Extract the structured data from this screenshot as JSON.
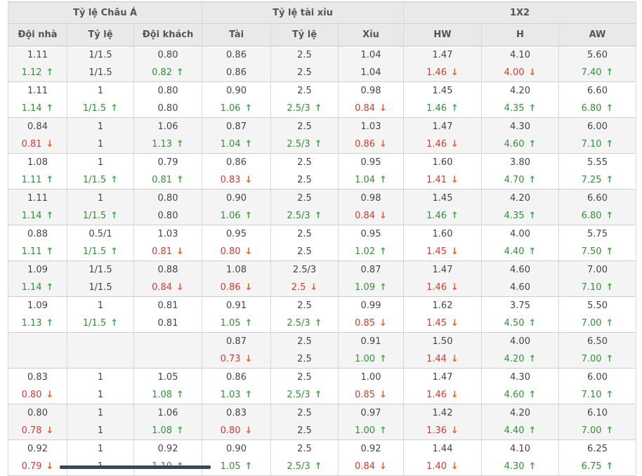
{
  "icons": {
    "up_arrow": "↑",
    "down_arrow": "↓"
  },
  "colors": {
    "trend_up_text": "#2e9230",
    "trend_down_text": "#d63a2a",
    "trend_up_arrow": "#3fae3f",
    "trend_down_arrow": "#f25a1e",
    "header_bg": "#e9e9e9",
    "shaded_row_bg": "#f4f4f4",
    "scrollbar_thumb": "#36495e"
  },
  "table": {
    "sections": [
      {
        "title": "Tỷ lệ Châu Á",
        "columns": [
          "Đội nhà",
          "Tỷ lệ",
          "Đội khách"
        ]
      },
      {
        "title": "Tỷ lệ tài xỉu",
        "columns": [
          "Tài",
          "Tỷ lệ",
          "Xỉu"
        ]
      },
      {
        "title": "1X2",
        "columns": [
          "HW",
          "H",
          "AW"
        ]
      }
    ],
    "rows": [
      {
        "shaded": true,
        "lines": [
          [
            [
              "1.11",
              ""
            ],
            [
              "1/1.5",
              ""
            ],
            [
              "0.80",
              ""
            ],
            [
              "0.86",
              ""
            ],
            [
              "2.5",
              ""
            ],
            [
              "1.04",
              ""
            ],
            [
              "1.47",
              ""
            ],
            [
              "4.10",
              ""
            ],
            [
              "5.60",
              ""
            ]
          ],
          [
            [
              "1.12",
              "up"
            ],
            [
              "1/1.5",
              ""
            ],
            [
              "0.82",
              "up"
            ],
            [
              "0.86",
              ""
            ],
            [
              "2.5",
              ""
            ],
            [
              "1.04",
              ""
            ],
            [
              "1.46",
              "down"
            ],
            [
              "4.00",
              "down"
            ],
            [
              "7.40",
              "up"
            ]
          ]
        ]
      },
      {
        "shaded": false,
        "lines": [
          [
            [
              "1.11",
              ""
            ],
            [
              "1",
              ""
            ],
            [
              "0.80",
              ""
            ],
            [
              "0.90",
              ""
            ],
            [
              "2.5",
              ""
            ],
            [
              "0.98",
              ""
            ],
            [
              "1.45",
              ""
            ],
            [
              "4.20",
              ""
            ],
            [
              "6.60",
              ""
            ]
          ],
          [
            [
              "1.14",
              "up"
            ],
            [
              "1/1.5",
              "up"
            ],
            [
              "0.80",
              ""
            ],
            [
              "1.06",
              "up"
            ],
            [
              "2.5/3",
              "up"
            ],
            [
              "0.84",
              "down"
            ],
            [
              "1.46",
              "up"
            ],
            [
              "4.35",
              "up"
            ],
            [
              "6.80",
              "up"
            ]
          ]
        ]
      },
      {
        "shaded": true,
        "lines": [
          [
            [
              "0.84",
              ""
            ],
            [
              "1",
              ""
            ],
            [
              "1.06",
              ""
            ],
            [
              "0.87",
              ""
            ],
            [
              "2.5",
              ""
            ],
            [
              "1.03",
              ""
            ],
            [
              "1.47",
              ""
            ],
            [
              "4.30",
              ""
            ],
            [
              "6.00",
              ""
            ]
          ],
          [
            [
              "0.81",
              "down"
            ],
            [
              "1",
              ""
            ],
            [
              "1.13",
              "up"
            ],
            [
              "1.04",
              "up"
            ],
            [
              "2.5/3",
              "up"
            ],
            [
              "0.86",
              "down"
            ],
            [
              "1.46",
              "down"
            ],
            [
              "4.60",
              "up"
            ],
            [
              "7.10",
              "up"
            ]
          ]
        ]
      },
      {
        "shaded": false,
        "lines": [
          [
            [
              "1.08",
              ""
            ],
            [
              "1",
              ""
            ],
            [
              "0.79",
              ""
            ],
            [
              "0.86",
              ""
            ],
            [
              "2.5",
              ""
            ],
            [
              "0.95",
              ""
            ],
            [
              "1.60",
              ""
            ],
            [
              "3.80",
              ""
            ],
            [
              "5.55",
              ""
            ]
          ],
          [
            [
              "1.11",
              "up"
            ],
            [
              "1/1.5",
              "up"
            ],
            [
              "0.81",
              "up"
            ],
            [
              "0.83",
              "down"
            ],
            [
              "2.5",
              ""
            ],
            [
              "1.04",
              "up"
            ],
            [
              "1.41",
              "down"
            ],
            [
              "4.70",
              "up"
            ],
            [
              "7.25",
              "up"
            ]
          ]
        ]
      },
      {
        "shaded": true,
        "lines": [
          [
            [
              "1.11",
              ""
            ],
            [
              "1",
              ""
            ],
            [
              "0.80",
              ""
            ],
            [
              "0.90",
              ""
            ],
            [
              "2.5",
              ""
            ],
            [
              "0.98",
              ""
            ],
            [
              "1.45",
              ""
            ],
            [
              "4.20",
              ""
            ],
            [
              "6.60",
              ""
            ]
          ],
          [
            [
              "1.14",
              "up"
            ],
            [
              "1/1.5",
              "up"
            ],
            [
              "0.80",
              ""
            ],
            [
              "1.06",
              "up"
            ],
            [
              "2.5/3",
              "up"
            ],
            [
              "0.84",
              "down"
            ],
            [
              "1.46",
              "up"
            ],
            [
              "4.35",
              "up"
            ],
            [
              "6.80",
              "up"
            ]
          ]
        ]
      },
      {
        "shaded": false,
        "lines": [
          [
            [
              "0.88",
              ""
            ],
            [
              "0.5/1",
              ""
            ],
            [
              "1.03",
              ""
            ],
            [
              "0.95",
              ""
            ],
            [
              "2.5",
              ""
            ],
            [
              "0.95",
              ""
            ],
            [
              "1.60",
              ""
            ],
            [
              "4.00",
              ""
            ],
            [
              "5.75",
              ""
            ]
          ],
          [
            [
              "1.11",
              "up"
            ],
            [
              "1/1.5",
              "up"
            ],
            [
              "0.81",
              "down"
            ],
            [
              "0.80",
              "down"
            ],
            [
              "2.5",
              ""
            ],
            [
              "1.02",
              "up"
            ],
            [
              "1.45",
              "down"
            ],
            [
              "4.40",
              "up"
            ],
            [
              "7.50",
              "up"
            ]
          ]
        ]
      },
      {
        "shaded": true,
        "lines": [
          [
            [
              "1.09",
              ""
            ],
            [
              "1/1.5",
              ""
            ],
            [
              "0.88",
              ""
            ],
            [
              "1.08",
              ""
            ],
            [
              "2.5/3",
              ""
            ],
            [
              "0.87",
              ""
            ],
            [
              "1.47",
              ""
            ],
            [
              "4.60",
              ""
            ],
            [
              "7.00",
              ""
            ]
          ],
          [
            [
              "1.14",
              "up"
            ],
            [
              "1/1.5",
              ""
            ],
            [
              "0.84",
              "down"
            ],
            [
              "0.86",
              "down"
            ],
            [
              "2.5",
              "down"
            ],
            [
              "1.09",
              "up"
            ],
            [
              "1.46",
              "down"
            ],
            [
              "4.60",
              ""
            ],
            [
              "7.10",
              "up"
            ]
          ]
        ]
      },
      {
        "shaded": false,
        "lines": [
          [
            [
              "1.09",
              ""
            ],
            [
              "1",
              ""
            ],
            [
              "0.81",
              ""
            ],
            [
              "0.91",
              ""
            ],
            [
              "2.5",
              ""
            ],
            [
              "0.99",
              ""
            ],
            [
              "1.62",
              ""
            ],
            [
              "3.75",
              ""
            ],
            [
              "5.50",
              ""
            ]
          ],
          [
            [
              "1.13",
              "up"
            ],
            [
              "1/1.5",
              "up"
            ],
            [
              "0.81",
              ""
            ],
            [
              "1.05",
              "up"
            ],
            [
              "2.5/3",
              "up"
            ],
            [
              "0.85",
              "down"
            ],
            [
              "1.45",
              "down"
            ],
            [
              "4.50",
              "up"
            ],
            [
              "7.00",
              "up"
            ]
          ]
        ]
      },
      {
        "shaded": true,
        "lines": [
          [
            [
              "",
              ""
            ],
            [
              "",
              ""
            ],
            [
              "",
              ""
            ],
            [
              "0.87",
              ""
            ],
            [
              "2.5",
              ""
            ],
            [
              "0.91",
              ""
            ],
            [
              "1.50",
              ""
            ],
            [
              "4.00",
              ""
            ],
            [
              "6.50",
              ""
            ]
          ],
          [
            [
              "",
              ""
            ],
            [
              "",
              ""
            ],
            [
              "",
              ""
            ],
            [
              "0.73",
              "down"
            ],
            [
              "2.5",
              ""
            ],
            [
              "1.00",
              "up"
            ],
            [
              "1.44",
              "down"
            ],
            [
              "4.20",
              "up"
            ],
            [
              "7.00",
              "up"
            ]
          ]
        ]
      },
      {
        "shaded": false,
        "lines": [
          [
            [
              "0.83",
              ""
            ],
            [
              "1",
              ""
            ],
            [
              "1.05",
              ""
            ],
            [
              "0.86",
              ""
            ],
            [
              "2.5",
              ""
            ],
            [
              "1.00",
              ""
            ],
            [
              "1.47",
              ""
            ],
            [
              "4.30",
              ""
            ],
            [
              "6.00",
              ""
            ]
          ],
          [
            [
              "0.80",
              "down"
            ],
            [
              "1",
              ""
            ],
            [
              "1.08",
              "up"
            ],
            [
              "1.03",
              "up"
            ],
            [
              "2.5/3",
              "up"
            ],
            [
              "0.85",
              "down"
            ],
            [
              "1.46",
              "down"
            ],
            [
              "4.60",
              "up"
            ],
            [
              "7.10",
              "up"
            ]
          ]
        ]
      },
      {
        "shaded": true,
        "lines": [
          [
            [
              "0.80",
              ""
            ],
            [
              "1",
              ""
            ],
            [
              "1.06",
              ""
            ],
            [
              "0.83",
              ""
            ],
            [
              "2.5",
              ""
            ],
            [
              "0.97",
              ""
            ],
            [
              "1.42",
              ""
            ],
            [
              "4.20",
              ""
            ],
            [
              "6.10",
              ""
            ]
          ],
          [
            [
              "0.78",
              "down"
            ],
            [
              "1",
              ""
            ],
            [
              "1.08",
              "up"
            ],
            [
              "0.80",
              "down"
            ],
            [
              "2.5",
              ""
            ],
            [
              "1.00",
              "up"
            ],
            [
              "1.36",
              "down"
            ],
            [
              "4.40",
              "up"
            ],
            [
              "7.00",
              "up"
            ]
          ]
        ]
      },
      {
        "shaded": false,
        "lines": [
          [
            [
              "0.92",
              ""
            ],
            [
              "1",
              ""
            ],
            [
              "0.92",
              ""
            ],
            [
              "0.90",
              ""
            ],
            [
              "2.5",
              ""
            ],
            [
              "0.92",
              ""
            ],
            [
              "1.44",
              ""
            ],
            [
              "4.10",
              ""
            ],
            [
              "6.25",
              ""
            ]
          ],
          [
            [
              "0.79",
              "down"
            ],
            [
              "1",
              ""
            ],
            [
              "1.10",
              "up"
            ],
            [
              "1.05",
              "up"
            ],
            [
              "2.5/3",
              "up"
            ],
            [
              "0.84",
              "down"
            ],
            [
              "1.40",
              "down"
            ],
            [
              "4.30",
              "up"
            ],
            [
              "6.75",
              "up"
            ]
          ]
        ]
      }
    ]
  }
}
